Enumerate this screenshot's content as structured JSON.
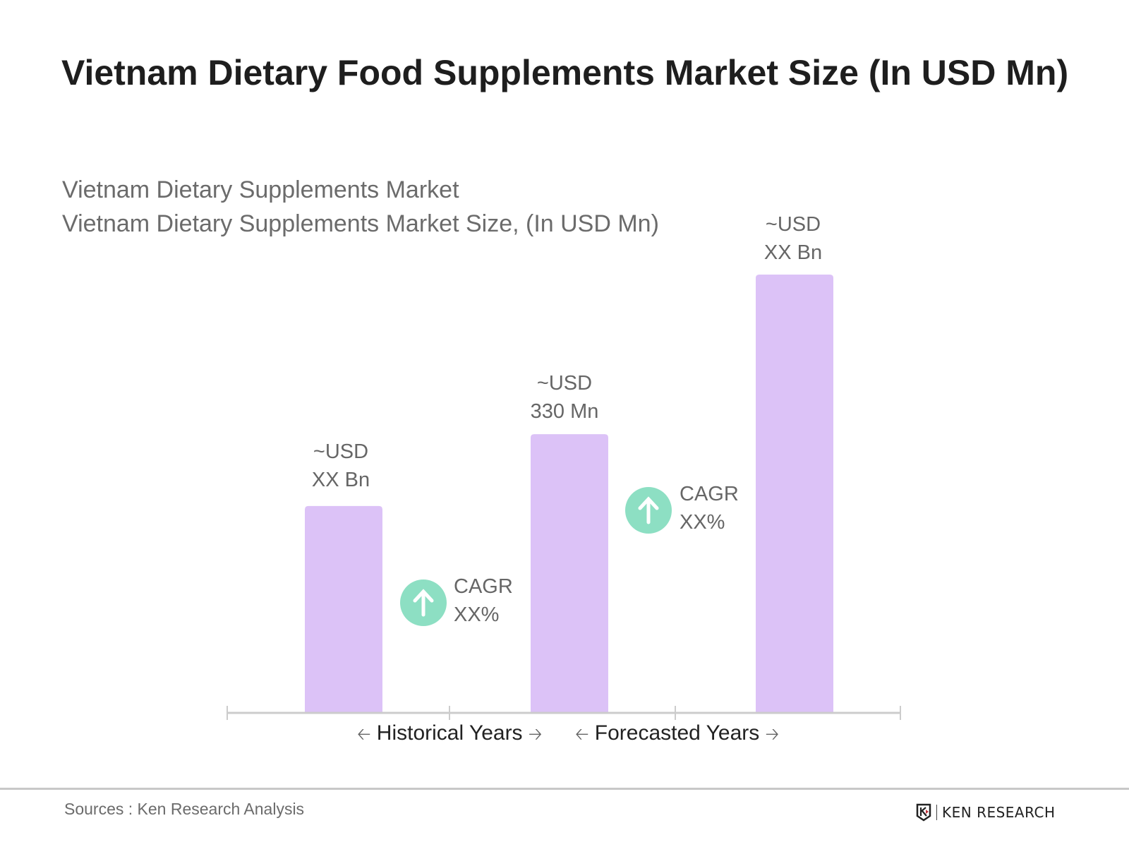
{
  "title": "Vietnam Dietary Food Supplements Market Size (In USD Mn)",
  "subtitle1": "Vietnam Dietary Supplements Market",
  "subtitle2": "Vietnam Dietary Supplements Market Size, (In USD Mn)",
  "chart_data": {
    "type": "bar",
    "categories": [
      "",
      "",
      ""
    ],
    "values": [
      245,
      330,
      519
    ],
    "data_labels": [
      [
        "~USD",
        "XX Bn"
      ],
      [
        "~USD",
        "330 Mn"
      ],
      [
        "~USD",
        "XX Bn"
      ]
    ],
    "bar_color": "#dcc2f7",
    "annotations": [
      {
        "line1": "CAGR",
        "line2": "XX%",
        "icon": "arrow-up-circle-icon",
        "color": "#8ddfc3"
      },
      {
        "line1": "CAGR",
        "line2": "XX%",
        "icon": "arrow-up-circle-icon",
        "color": "#8ddfc3"
      }
    ],
    "axis_groups": [
      "Historical Years",
      "Forecasted Years"
    ],
    "grid": false
  },
  "footer": {
    "source": "Sources : Ken Research Analysis",
    "logo_text": "KEN RESEARCH"
  }
}
